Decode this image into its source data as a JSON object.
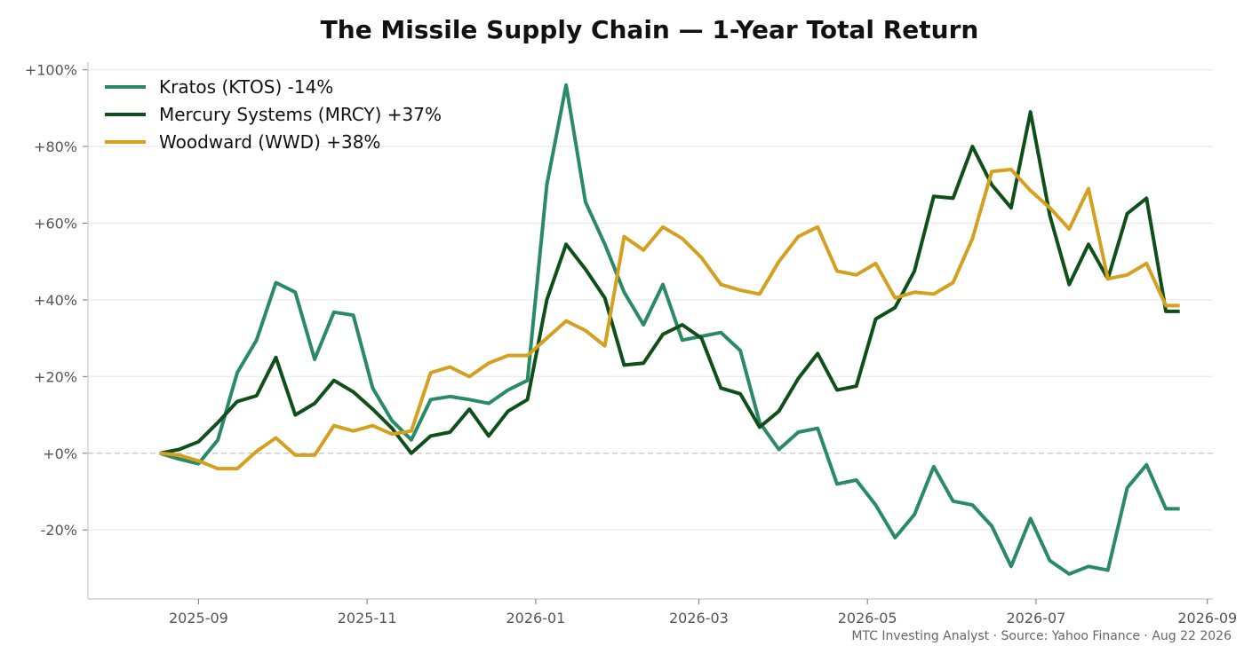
{
  "chart_data": {
    "type": "line",
    "title": "The Missile Supply Chain — 1-Year Total Return",
    "footer": "MTC Investing Analyst · Source: Yahoo Finance · Aug 22 2026",
    "xlabel": "",
    "ylabel": "",
    "ylim": [
      -38,
      102
    ],
    "y_ticks": [
      -20,
      0,
      20,
      40,
      60,
      80,
      100
    ],
    "y_tick_labels": [
      "-20%",
      "+0%",
      "+20%",
      "+40%",
      "+60%",
      "+80%",
      "+100%"
    ],
    "x_ticks": [
      "2025-09-01",
      "2025-11-01",
      "2026-01-01",
      "2026-03-01",
      "2026-05-01",
      "2026-07-01",
      "2026-09-01"
    ],
    "x_tick_labels": [
      "2025-09",
      "2025-11",
      "2026-01",
      "2026-03",
      "2026-05",
      "2026-07",
      "2026-09"
    ],
    "xlim": [
      "2025-07-23",
      "2026-09-03"
    ],
    "grid": "horizontal",
    "zero_line": "dashed",
    "legend_position": "top-left",
    "dates": [
      "2025-08-18",
      "2025-08-25",
      "2025-09-01",
      "2025-09-08",
      "2025-09-15",
      "2025-09-22",
      "2025-09-29",
      "2025-10-06",
      "2025-10-13",
      "2025-10-20",
      "2025-10-27",
      "2025-11-03",
      "2025-11-10",
      "2025-11-17",
      "2025-11-24",
      "2025-12-01",
      "2025-12-08",
      "2025-12-15",
      "2025-12-22",
      "2025-12-29",
      "2026-01-05",
      "2026-01-12",
      "2026-01-19",
      "2026-01-26",
      "2026-02-02",
      "2026-02-09",
      "2026-02-16",
      "2026-02-23",
      "2026-03-02",
      "2026-03-09",
      "2026-03-16",
      "2026-03-23",
      "2026-03-30",
      "2026-04-06",
      "2026-04-13",
      "2026-04-20",
      "2026-04-27",
      "2026-05-04",
      "2026-05-11",
      "2026-05-18",
      "2026-05-25",
      "2026-06-01",
      "2026-06-08",
      "2026-06-15",
      "2026-06-22",
      "2026-06-29",
      "2026-07-06",
      "2026-07-13",
      "2026-07-20",
      "2026-07-27",
      "2026-08-03",
      "2026-08-10",
      "2026-08-17",
      "2026-08-22"
    ],
    "series": [
      {
        "name": "Kratos (KTOS)  -14%",
        "color": "#2a8a68",
        "values": [
          0,
          -1.5,
          -2.7,
          3.5,
          21,
          29.5,
          44.5,
          42,
          24.5,
          36.8,
          36,
          17,
          8.5,
          3.5,
          14,
          14.8,
          14,
          13,
          16.5,
          19,
          70,
          96,
          65.5,
          54.5,
          42,
          33.5,
          44,
          29.5,
          30.5,
          31.5,
          26.8,
          8,
          1,
          5.5,
          6.5,
          -8,
          -7,
          -13.5,
          -22,
          -16,
          -3.5,
          -12.5,
          -13.5,
          -19,
          -29.5,
          -17,
          -28,
          -31.5,
          -29.5,
          -30.5,
          -9,
          -3,
          -14.5,
          -14.5
        ]
      },
      {
        "name": "Mercury Systems (MRCY)  +37%",
        "color": "#0f4f1a",
        "values": [
          0,
          1,
          3,
          8,
          13.5,
          15,
          25,
          10,
          13,
          19,
          16,
          11.5,
          6.5,
          0,
          4.5,
          5.5,
          11.5,
          4.5,
          11,
          14,
          40,
          54.5,
          48,
          40.5,
          23,
          23.5,
          31,
          33.5,
          30,
          17,
          15.5,
          6.8,
          11,
          19.5,
          26,
          16.5,
          17.5,
          35,
          38,
          47.5,
          67,
          66.5,
          80,
          70,
          64,
          89,
          62,
          44,
          54.5,
          45.5,
          62.5,
          66.5,
          37,
          37
        ]
      },
      {
        "name": "Woodward (WWD)  +38%",
        "color": "#d4a020",
        "values": [
          0,
          -0.5,
          -2,
          -4,
          -4,
          0.5,
          4,
          -0.5,
          -0.5,
          7.2,
          5.8,
          7.2,
          5,
          5.8,
          21,
          22.5,
          20,
          23.5,
          25.5,
          25.5,
          30,
          34.5,
          32,
          28,
          56.5,
          53,
          59,
          56,
          51,
          44,
          42.5,
          41.5,
          50,
          56.5,
          59,
          47.5,
          46.5,
          49.5,
          40.5,
          42,
          41.5,
          44.5,
          56,
          73.5,
          74,
          68.5,
          64,
          58.5,
          69,
          45.5,
          46.5,
          49.5,
          38.5,
          38.5
        ]
      }
    ]
  }
}
